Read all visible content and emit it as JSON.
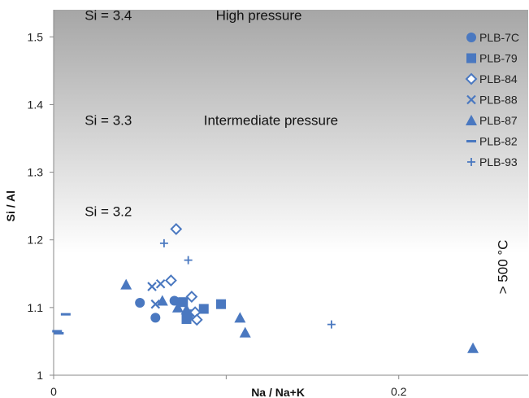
{
  "chart_data": {
    "type": "scatter",
    "xlabel": "Na / Na+K",
    "ylabel": "Si / Al",
    "xlim": [
      0,
      0.275
    ],
    "ylim": [
      1,
      1.54
    ],
    "xticks": [
      {
        "value": 0,
        "label": "0"
      },
      {
        "value": 0.1,
        "label": ""
      },
      {
        "value": 0.2,
        "label": "0.2"
      }
    ],
    "yticks": [
      {
        "value": 1.0,
        "label": "1"
      },
      {
        "value": 1.1,
        "label": "1.1"
      },
      {
        "value": 1.2,
        "label": "1.2"
      },
      {
        "value": 1.3,
        "label": "1.3"
      },
      {
        "value": 1.4,
        "label": "1.4"
      },
      {
        "value": 1.5,
        "label": "1.5"
      }
    ],
    "grid": false,
    "legend_position": "top-right",
    "series_color": "#4a78c0",
    "background_gradient": {
      "top": "#a6a6a6",
      "bottom": "#ffffff",
      "ends_at_y": 1.18
    },
    "annotations": [
      {
        "text": "Si = 3.4",
        "x": 0.018,
        "y": 1.525,
        "size": 17
      },
      {
        "text": "High pressure",
        "x": 0.094,
        "y": 1.525,
        "size": 17
      },
      {
        "text": "Si = 3.3",
        "x": 0.018,
        "y": 1.37,
        "size": 17
      },
      {
        "text": "Intermediate pressure",
        "x": 0.087,
        "y": 1.37,
        "size": 17
      },
      {
        "text": "Si = 3.2",
        "x": 0.018,
        "y": 1.235,
        "size": 17
      },
      {
        "text": "> 500 °C",
        "x": 0.263,
        "y": 1.16,
        "size": 18,
        "rotate": -90
      }
    ],
    "series": [
      {
        "name": "PLB-7C",
        "marker": "circle",
        "points": [
          [
            0.05,
            1.107
          ],
          [
            0.059,
            1.085
          ],
          [
            0.07,
            1.11
          ]
        ]
      },
      {
        "name": "PLB-79",
        "marker": "square",
        "points": [
          [
            0.075,
            1.108
          ],
          [
            0.077,
            1.083
          ],
          [
            0.078,
            1.09
          ],
          [
            0.087,
            1.098
          ],
          [
            0.097,
            1.105
          ]
        ]
      },
      {
        "name": "PLB-84",
        "marker": "diamond-open",
        "points": [
          [
            0.071,
            1.216
          ],
          [
            0.068,
            1.14
          ],
          [
            0.08,
            1.116
          ],
          [
            0.082,
            1.093
          ],
          [
            0.083,
            1.082
          ]
        ]
      },
      {
        "name": "PLB-88",
        "marker": "x",
        "points": [
          [
            0.057,
            1.131
          ],
          [
            0.062,
            1.135
          ],
          [
            0.059,
            1.105
          ]
        ]
      },
      {
        "name": "PLB-87",
        "marker": "triangle",
        "points": [
          [
            0.042,
            1.134
          ],
          [
            0.063,
            1.11
          ],
          [
            0.072,
            1.1
          ],
          [
            0.077,
            1.097
          ],
          [
            0.108,
            1.085
          ],
          [
            0.111,
            1.063
          ],
          [
            0.243,
            1.04
          ]
        ]
      },
      {
        "name": "PLB-82",
        "marker": "dash",
        "points": [
          [
            0.002,
            1.065
          ],
          [
            0.007,
            1.09
          ],
          [
            0.003,
            1.062
          ]
        ]
      },
      {
        "name": "PLB-93",
        "marker": "plus",
        "points": [
          [
            0.064,
            1.195
          ],
          [
            0.078,
            1.17
          ],
          [
            0.161,
            1.075
          ]
        ]
      }
    ]
  }
}
